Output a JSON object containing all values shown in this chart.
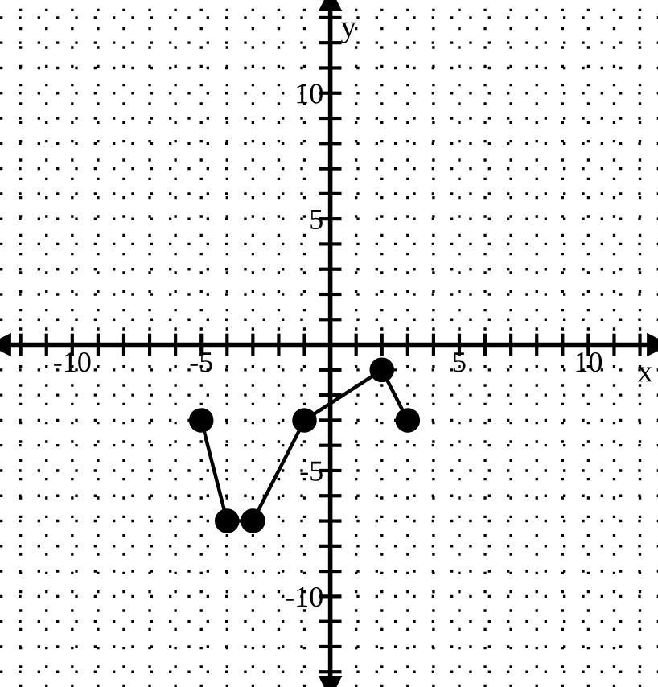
{
  "chart_data": {
    "type": "line",
    "xlabel": "x",
    "ylabel": "y",
    "x": [
      -5,
      -4,
      -3,
      -1,
      2,
      3
    ],
    "series": [
      {
        "color": "#000000",
        "values": [
          -3,
          -7,
          -7,
          -3,
          -1,
          -3
        ]
      }
    ],
    "xlim": [
      -12.8,
      12.7
    ],
    "ylim": [
      -13.6,
      13.7
    ],
    "xticks": [
      {
        "value": -12,
        "label": null
      },
      {
        "value": -11,
        "label": null
      },
      {
        "value": -10,
        "label": "-10"
      },
      {
        "value": -9,
        "label": null
      },
      {
        "value": -8,
        "label": null
      },
      {
        "value": -7,
        "label": null
      },
      {
        "value": -6,
        "label": null
      },
      {
        "value": -5,
        "label": "-5"
      },
      {
        "value": -4,
        "label": null
      },
      {
        "value": -3,
        "label": null
      },
      {
        "value": -2,
        "label": null
      },
      {
        "value": -1,
        "label": null
      },
      {
        "value": 1,
        "label": null
      },
      {
        "value": 2,
        "label": null
      },
      {
        "value": 3,
        "label": null
      },
      {
        "value": 4,
        "label": null
      },
      {
        "value": 5,
        "label": "5"
      },
      {
        "value": 6,
        "label": null
      },
      {
        "value": 7,
        "label": null
      },
      {
        "value": 8,
        "label": null
      },
      {
        "value": 9,
        "label": null
      },
      {
        "value": 10,
        "label": "10"
      },
      {
        "value": 11,
        "label": null
      },
      {
        "value": 12,
        "label": null
      }
    ],
    "yticks": [
      {
        "value": -13,
        "label": null
      },
      {
        "value": -12,
        "label": null
      },
      {
        "value": -11,
        "label": null
      },
      {
        "value": -10,
        "label": "-10"
      },
      {
        "value": -9,
        "label": null
      },
      {
        "value": -8,
        "label": null
      },
      {
        "value": -7,
        "label": null
      },
      {
        "value": -6,
        "label": null
      },
      {
        "value": -5,
        "label": "-5"
      },
      {
        "value": -4,
        "label": null
      },
      {
        "value": -3,
        "label": null
      },
      {
        "value": -2,
        "label": null
      },
      {
        "value": -1,
        "label": null
      },
      {
        "value": 1,
        "label": null
      },
      {
        "value": 2,
        "label": null
      },
      {
        "value": 3,
        "label": null
      },
      {
        "value": 4,
        "label": null
      },
      {
        "value": 5,
        "label": "5"
      },
      {
        "value": 6,
        "label": null
      },
      {
        "value": 7,
        "label": null
      },
      {
        "value": 8,
        "label": null
      },
      {
        "value": 9,
        "label": null
      },
      {
        "value": 10,
        "label": "10"
      },
      {
        "value": 11,
        "label": null
      },
      {
        "value": 12,
        "label": null
      },
      {
        "value": 13,
        "label": null
      }
    ],
    "grid": true,
    "marker": "circle",
    "line_style": "solid"
  }
}
